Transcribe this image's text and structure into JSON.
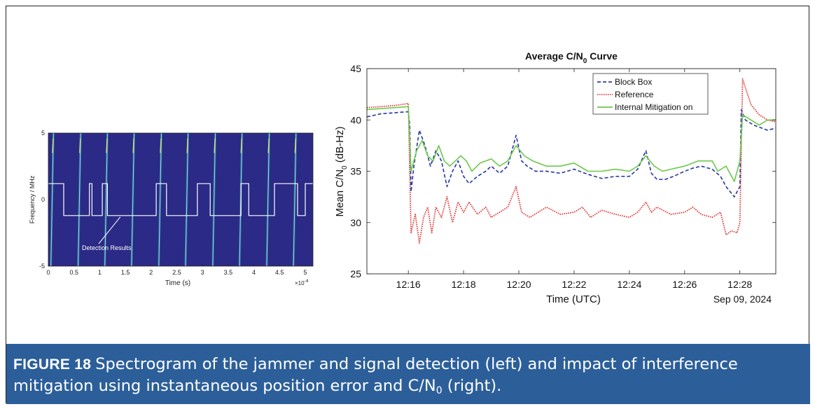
{
  "caption": {
    "label": "FIGURE 18",
    "text_part1": "Spectrogram of the jammer and signal detection (left) and impact of interference mitigation using instantaneous position error and C/N",
    "subscript": "0",
    "text_part2": " (right)."
  },
  "colors": {
    "caption_bg": "#2c5f9a",
    "spectrogram_bg": "#2b2a86",
    "detection_line": "#ffffff",
    "block_box": "#2f3fa8",
    "reference": "#e03c3c",
    "mitigation": "#6cc94a"
  },
  "chart_data": [
    {
      "type": "heatmap",
      "name": "spectrogram",
      "title": "",
      "xlabel": "Time (s)",
      "ylabel": "Frequency / MHz",
      "x_exponent_label": "×10",
      "x_exponent_power": "-4",
      "xlim": [
        0,
        5.15
      ],
      "ylim": [
        -5,
        5
      ],
      "x_ticks": [
        "0",
        "0.5",
        "1",
        "1.5",
        "2",
        "2.5",
        "3",
        "3.5",
        "4",
        "4.5",
        "5"
      ],
      "y_ticks": [
        "5",
        "0",
        "-5"
      ],
      "annotation": "Detection Results",
      "annotation_target": [
        1.4,
        -1.2
      ],
      "chirp_start_times": [
        0.05,
        0.58,
        1.1,
        1.62,
        2.15,
        2.67,
        3.2,
        3.72,
        4.25,
        4.77
      ],
      "detection": {
        "high_level": 1.2,
        "low_level": -1.2,
        "high_intervals": [
          [
            0,
            0.3
          ],
          [
            0.8,
            0.85
          ],
          [
            1.05,
            1.15
          ],
          [
            2.1,
            2.3
          ],
          [
            2.9,
            3.15
          ],
          [
            3.75,
            3.9
          ],
          [
            4.4,
            4.85
          ],
          [
            5.0,
            5.15
          ]
        ]
      }
    },
    {
      "type": "line",
      "name": "avg-cn0",
      "title": "Average C/N",
      "title_sub": "0",
      "title_tail": " Curve",
      "xlabel": "Time (UTC)",
      "ylabel": "Mean C/N",
      "ylabel_sub": "0",
      "ylabel_tail": " (dB-Hz)",
      "date_label": "Sep 09, 2024",
      "xlim": [
        14.5,
        29.3
      ],
      "ylim": [
        25,
        45
      ],
      "x_ticks": [
        {
          "value": 16,
          "label": "12:16"
        },
        {
          "value": 18,
          "label": "12:18"
        },
        {
          "value": 20,
          "label": "12:20"
        },
        {
          "value": 22,
          "label": "12:22"
        },
        {
          "value": 24,
          "label": "12:24"
        },
        {
          "value": 26,
          "label": "12:26"
        },
        {
          "value": 28,
          "label": "12:28"
        }
      ],
      "y_ticks": [
        25,
        30,
        35,
        40,
        45
      ],
      "legend": [
        "Block Box",
        "Reference",
        "Internal Mitigation on"
      ],
      "legend_position": "top-right",
      "series": [
        {
          "name": "Block Box",
          "style": "dashed",
          "points": [
            [
              14.5,
              40.3
            ],
            [
              15.0,
              40.6
            ],
            [
              15.5,
              40.7
            ],
            [
              16.0,
              40.8
            ],
            [
              16.05,
              39.5
            ],
            [
              16.1,
              33.0
            ],
            [
              16.2,
              35.5
            ],
            [
              16.4,
              39.0
            ],
            [
              16.6,
              37.5
            ],
            [
              16.8,
              35.5
            ],
            [
              17.0,
              37.0
            ],
            [
              17.2,
              36.0
            ],
            [
              17.4,
              33.5
            ],
            [
              17.6,
              35.0
            ],
            [
              17.8,
              36.0
            ],
            [
              18.0,
              34.5
            ],
            [
              18.2,
              33.8
            ],
            [
              18.5,
              34.5
            ],
            [
              18.8,
              35.0
            ],
            [
              19.0,
              35.5
            ],
            [
              19.3,
              34.8
            ],
            [
              19.6,
              35.5
            ],
            [
              19.9,
              38.5
            ],
            [
              20.1,
              36.0
            ],
            [
              20.3,
              35.5
            ],
            [
              20.6,
              35.0
            ],
            [
              21.0,
              35.0
            ],
            [
              21.5,
              34.8
            ],
            [
              22.0,
              35.2
            ],
            [
              22.5,
              34.7
            ],
            [
              23.0,
              34.3
            ],
            [
              23.5,
              34.5
            ],
            [
              24.0,
              34.5
            ],
            [
              24.3,
              35.2
            ],
            [
              24.6,
              37.0
            ],
            [
              24.8,
              34.8
            ],
            [
              25.0,
              34.2
            ],
            [
              25.3,
              34.2
            ],
            [
              25.6,
              34.5
            ],
            [
              26.0,
              35.0
            ],
            [
              26.3,
              35.3
            ],
            [
              26.6,
              35.5
            ],
            [
              27.0,
              35.2
            ],
            [
              27.3,
              34.5
            ],
            [
              27.5,
              33.5
            ],
            [
              27.8,
              32.5
            ],
            [
              28.0,
              33.5
            ],
            [
              28.05,
              41.0
            ],
            [
              28.2,
              40.0
            ],
            [
              28.5,
              39.5
            ],
            [
              28.8,
              39.2
            ],
            [
              29.0,
              39.0
            ],
            [
              29.3,
              39.2
            ]
          ]
        },
        {
          "name": "Reference",
          "style": "dotted",
          "points": [
            [
              14.5,
              41.2
            ],
            [
              15.0,
              41.3
            ],
            [
              15.5,
              41.4
            ],
            [
              16.0,
              41.6
            ],
            [
              16.05,
              35.0
            ],
            [
              16.1,
              29.0
            ],
            [
              16.25,
              30.8
            ],
            [
              16.4,
              28.0
            ],
            [
              16.55,
              30.5
            ],
            [
              16.7,
              31.5
            ],
            [
              16.85,
              29.0
            ],
            [
              17.0,
              31.5
            ],
            [
              17.2,
              30.5
            ],
            [
              17.4,
              32.5
            ],
            [
              17.6,
              30.0
            ],
            [
              17.8,
              32.0
            ],
            [
              18.0,
              31.0
            ],
            [
              18.2,
              32.0
            ],
            [
              18.5,
              30.8
            ],
            [
              18.8,
              31.5
            ],
            [
              19.0,
              30.5
            ],
            [
              19.3,
              31.0
            ],
            [
              19.6,
              31.5
            ],
            [
              19.9,
              33.5
            ],
            [
              20.1,
              31.0
            ],
            [
              20.4,
              30.5
            ],
            [
              20.7,
              31.0
            ],
            [
              21.0,
              31.5
            ],
            [
              21.5,
              30.8
            ],
            [
              22.0,
              31.0
            ],
            [
              22.3,
              31.5
            ],
            [
              22.6,
              30.5
            ],
            [
              23.0,
              31.2
            ],
            [
              23.5,
              30.8
            ],
            [
              24.0,
              30.5
            ],
            [
              24.3,
              31.0
            ],
            [
              24.6,
              32.0
            ],
            [
              24.8,
              31.0
            ],
            [
              25.0,
              31.5
            ],
            [
              25.5,
              30.8
            ],
            [
              26.0,
              31.0
            ],
            [
              26.3,
              31.5
            ],
            [
              26.6,
              30.8
            ],
            [
              27.0,
              30.5
            ],
            [
              27.3,
              31.0
            ],
            [
              27.5,
              28.8
            ],
            [
              27.7,
              29.2
            ],
            [
              27.9,
              29.0
            ],
            [
              28.0,
              30.0
            ],
            [
              28.1,
              44.0
            ],
            [
              28.4,
              41.5
            ],
            [
              28.7,
              40.5
            ],
            [
              29.0,
              40.0
            ],
            [
              29.3,
              39.8
            ]
          ]
        },
        {
          "name": "Internal Mitigation on",
          "style": "solid",
          "points": [
            [
              14.5,
              41.0
            ],
            [
              15.0,
              41.1
            ],
            [
              15.5,
              41.2
            ],
            [
              16.0,
              41.3
            ],
            [
              16.05,
              38.0
            ],
            [
              16.1,
              35.0
            ],
            [
              16.3,
              37.0
            ],
            [
              16.5,
              38.0
            ],
            [
              16.7,
              36.5
            ],
            [
              16.9,
              36.0
            ],
            [
              17.1,
              37.5
            ],
            [
              17.3,
              36.0
            ],
            [
              17.5,
              35.5
            ],
            [
              17.7,
              36.0
            ],
            [
              17.9,
              36.5
            ],
            [
              18.1,
              36.0
            ],
            [
              18.3,
              35.0
            ],
            [
              18.6,
              35.8
            ],
            [
              19.0,
              36.2
            ],
            [
              19.3,
              35.5
            ],
            [
              19.6,
              36.0
            ],
            [
              19.9,
              37.5
            ],
            [
              20.2,
              36.5
            ],
            [
              20.5,
              36.0
            ],
            [
              21.0,
              35.5
            ],
            [
              21.5,
              35.5
            ],
            [
              22.0,
              35.8
            ],
            [
              22.5,
              35.0
            ],
            [
              23.0,
              35.0
            ],
            [
              23.5,
              35.2
            ],
            [
              24.0,
              35.0
            ],
            [
              24.3,
              35.5
            ],
            [
              24.6,
              36.5
            ],
            [
              24.9,
              35.5
            ],
            [
              25.2,
              35.0
            ],
            [
              25.5,
              35.2
            ],
            [
              26.0,
              35.5
            ],
            [
              26.5,
              36.0
            ],
            [
              27.0,
              36.0
            ],
            [
              27.2,
              35.0
            ],
            [
              27.5,
              35.5
            ],
            [
              27.8,
              34.0
            ],
            [
              28.0,
              36.0
            ],
            [
              28.1,
              40.5
            ],
            [
              28.4,
              40.0
            ],
            [
              28.7,
              39.5
            ],
            [
              29.0,
              40.0
            ],
            [
              29.3,
              40.0
            ]
          ]
        }
      ]
    }
  ]
}
